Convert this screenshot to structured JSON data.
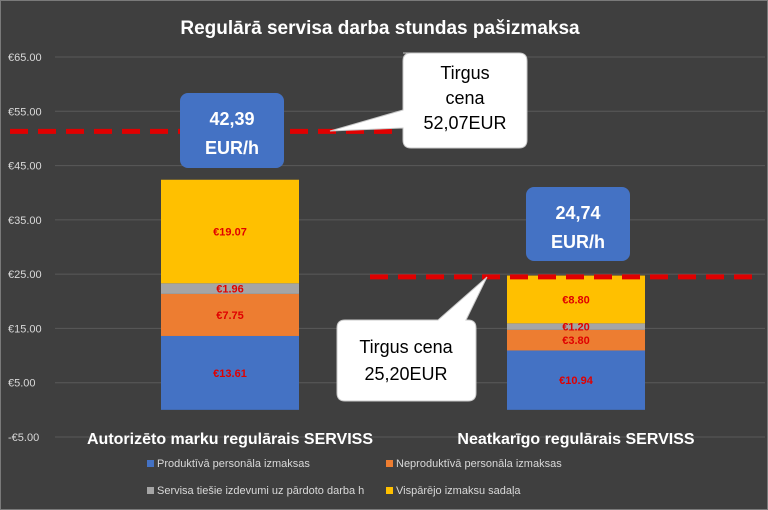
{
  "chart_data": {
    "type": "bar",
    "stacked": true,
    "title": "Regulārā servisa darba stundas pašizmaksa",
    "categories": [
      "Autorizēto marku regulārais SERVISS",
      "Neatkarīgo  regulārais  SERVISS"
    ],
    "series": [
      {
        "name": "Produktīvā personāla izmaksas",
        "values": [
          13.61,
          10.94
        ],
        "labels": [
          "€13.61",
          "€10.94"
        ]
      },
      {
        "name": "Neproduktīvā personāla izmaksas",
        "values": [
          7.75,
          3.8
        ],
        "labels": [
          "€7.75",
          "€3.80"
        ]
      },
      {
        "name": "Servisa tiešie izdevumi uz pārdoto darba h",
        "values": [
          1.96,
          1.2
        ],
        "labels": [
          "€1.96",
          "€1.20"
        ]
      },
      {
        "name": "Vispārējo izmaksu sadaļa",
        "values": [
          19.07,
          8.8
        ],
        "labels": [
          "€19.07",
          "€8.80"
        ]
      }
    ],
    "y_ticks": [
      {
        "value": 65,
        "label": "€65.00"
      },
      {
        "value": 55,
        "label": "€55.00"
      },
      {
        "value": 45,
        "label": "€45.00"
      },
      {
        "value": 35,
        "label": "€35.00"
      },
      {
        "value": 25,
        "label": "€25.00"
      },
      {
        "value": 15,
        "label": "€15.00"
      },
      {
        "value": 5,
        "label": "€5.00"
      },
      {
        "value": -5,
        "label": "-€5.00"
      }
    ],
    "ylim": [
      -5,
      65
    ],
    "grid": true,
    "legend_position": "bottom",
    "totals": [
      {
        "line1": "42,39",
        "line2": "EUR/h"
      },
      {
        "line1": "24,74",
        "line2": "EUR/h"
      }
    ],
    "reference_lines": [
      {
        "value": 51.3,
        "lines": [
          "Tirgus",
          "cena",
          "52,07EUR"
        ]
      },
      {
        "value": 24.5,
        "lines": [
          "Tirgus cena",
          "25,20EUR"
        ]
      }
    ],
    "colors": {
      "background": "#3f3f3f",
      "grid": "#5a5a5a",
      "text": "#ffffff",
      "tick_text": "#d9d9d9",
      "bar_label": "#e00000",
      "total_box": "#4472c4",
      "dash": "#e00000",
      "series": [
        "#4472c4",
        "#ed7d31",
        "#a5a5a5",
        "#ffc000"
      ]
    }
  }
}
